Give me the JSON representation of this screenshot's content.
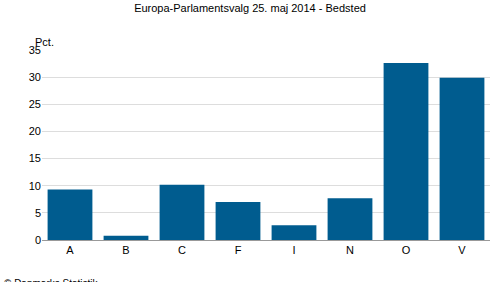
{
  "chart_data": {
    "type": "bar",
    "title": "Europa-Parlamentsvalg 25. maj 2014 - Bedsted",
    "y_label": "Pct.",
    "annotations": [
      "© Danmarks Statistik"
    ],
    "categories": [
      "A",
      "B",
      "C",
      "F",
      "I",
      "N",
      "O",
      "V"
    ],
    "values": [
      9.3,
      0.8,
      10.2,
      7.0,
      2.7,
      7.7,
      32.6,
      29.9
    ],
    "color": "#005c8f",
    "ylim": [
      0,
      35
    ],
    "yticks": [
      0,
      5,
      10,
      15,
      20,
      25,
      30,
      35
    ],
    "grid": true
  }
}
